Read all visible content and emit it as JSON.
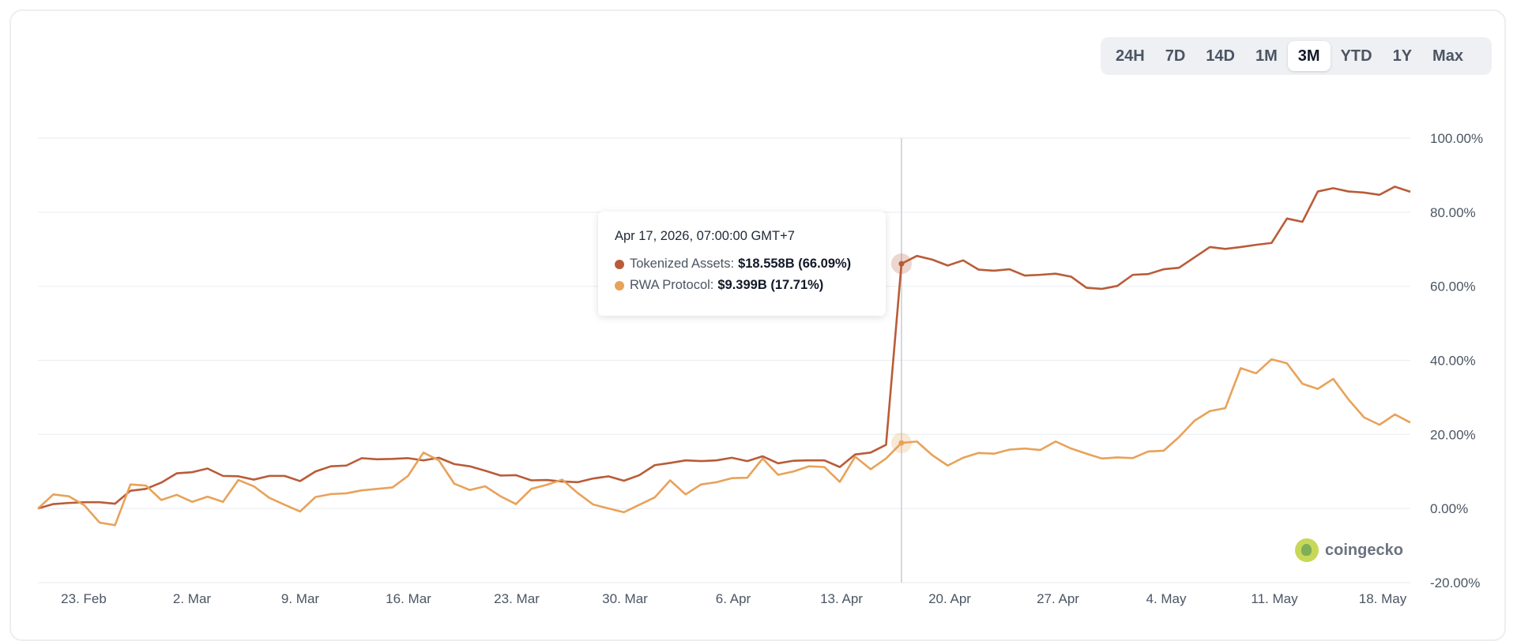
{
  "time_range": {
    "buttons": [
      "24H",
      "7D",
      "14D",
      "1M",
      "3M",
      "YTD",
      "1Y",
      "Max"
    ],
    "selected": "3M"
  },
  "tooltip": {
    "date": "Apr 17, 2026, 07:00:00 GMT+7",
    "rows": [
      {
        "label": "Tokenized Assets:",
        "value": "$18.558B (66.09%)",
        "color": "#b85c38"
      },
      {
        "label": "RWA Protocol:",
        "value": "$9.399B (17.71%)",
        "color": "#e8a25a"
      }
    ]
  },
  "watermark": "coingecko",
  "chart_data": {
    "type": "line",
    "x_axis": {
      "ticks": [
        "23. Feb",
        "2. Mar",
        "9. Mar",
        "16. Mar",
        "23. Mar",
        "30. Mar",
        "6. Apr",
        "13. Apr",
        "20. Apr",
        "27. Apr",
        "4. May",
        "11. May",
        "18. May"
      ],
      "start": "Feb 20",
      "end": "May 20"
    },
    "y_axis": {
      "ticks": [
        "100.00%",
        "80.00%",
        "60.00%",
        "40.00%",
        "20.00%",
        "0.00%",
        "-20.00%"
      ],
      "ylim": [
        -20,
        100
      ],
      "unit": "%"
    },
    "grid": true,
    "crosshair_index": 56,
    "series": [
      {
        "name": "Tokenized Assets",
        "color": "#b85c38",
        "values": [
          0.0,
          1.2,
          1.5,
          1.7,
          1.7,
          1.3,
          4.8,
          5.3,
          7.0,
          9.5,
          9.8,
          10.8,
          8.8,
          8.7,
          7.8,
          8.8,
          8.8,
          7.4,
          10.0,
          11.4,
          11.6,
          13.6,
          13.3,
          13.4,
          13.6,
          13.0,
          13.7,
          12.0,
          11.4,
          10.2,
          8.9,
          9.0,
          7.6,
          7.7,
          7.3,
          7.1,
          8.1,
          8.7,
          7.5,
          9.0,
          11.7,
          12.3,
          13.0,
          12.8,
          13.0,
          13.7,
          12.8,
          14.1,
          12.2,
          12.9,
          13.0,
          13.0,
          11.2,
          14.6,
          15.1,
          17.2,
          66.09,
          68.2,
          67.2,
          65.6,
          67.0,
          64.5,
          64.2,
          64.6,
          62.9,
          63.1,
          63.4,
          62.6,
          59.6,
          59.3,
          60.1,
          63.1,
          63.3,
          64.6,
          65.0,
          67.8,
          70.6,
          70.1,
          70.6,
          71.2,
          71.7,
          78.3,
          77.4,
          85.6,
          86.5,
          85.6,
          85.3,
          84.7,
          86.9,
          85.5
        ]
      },
      {
        "name": "RWA Protocol",
        "color": "#e8a25a",
        "values": [
          0.0,
          3.8,
          3.3,
          0.9,
          -3.8,
          -4.5,
          6.5,
          6.2,
          2.3,
          3.7,
          1.8,
          3.2,
          1.8,
          7.7,
          6.0,
          2.9,
          1.0,
          -0.8,
          3.1,
          3.9,
          4.1,
          4.9,
          5.3,
          5.7,
          8.8,
          15.1,
          13.0,
          6.7,
          5.0,
          6.0,
          3.3,
          1.2,
          5.3,
          6.4,
          7.8,
          4.2,
          1.1,
          0.0,
          -1.0,
          1.0,
          3.0,
          7.6,
          3.8,
          6.5,
          7.1,
          8.2,
          8.3,
          13.5,
          9.1,
          10.0,
          11.4,
          11.2,
          7.2,
          14.0,
          10.6,
          13.5,
          17.71,
          18.1,
          14.4,
          11.6,
          13.7,
          15.0,
          14.8,
          15.9,
          16.2,
          15.8,
          18.1,
          16.2,
          14.8,
          13.5,
          13.8,
          13.6,
          15.4,
          15.6,
          19.3,
          23.7,
          26.3,
          27.1,
          37.9,
          36.5,
          40.3,
          39.2,
          33.7,
          32.3,
          35.0,
          29.4,
          24.6,
          22.6,
          25.4,
          23.2
        ]
      }
    ]
  }
}
